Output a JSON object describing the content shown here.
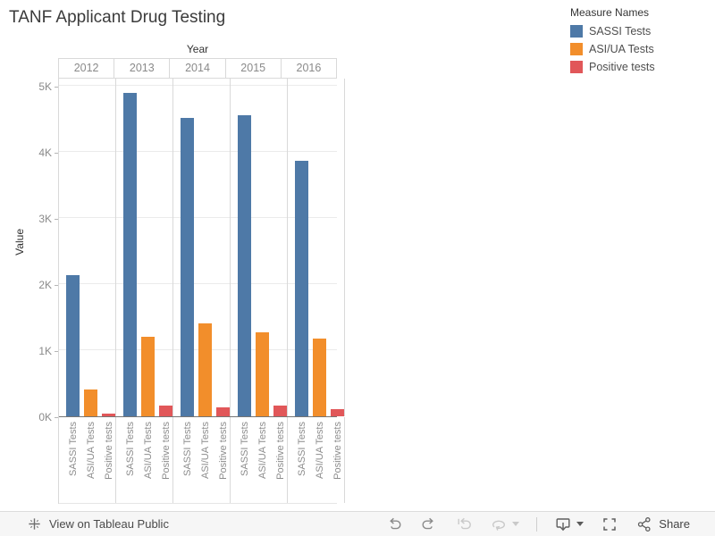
{
  "title": "TANF Applicant Drug Testing",
  "legend": {
    "title": "Measure Names",
    "items": [
      {
        "label": "SASSI Tests",
        "color": "#4e79a7"
      },
      {
        "label": "ASI/UA Tests",
        "color": "#f28e2b"
      },
      {
        "label": "Positive tests",
        "color": "#e15759"
      }
    ]
  },
  "chart_data": {
    "type": "bar",
    "col_axis_title": "Year",
    "ylabel": "Value",
    "categories": [
      "2012",
      "2013",
      "2014",
      "2015",
      "2016"
    ],
    "series": [
      {
        "name": "SASSI Tests",
        "color": "#4e79a7",
        "values": [
          2130,
          4890,
          4510,
          4560,
          3870
        ]
      },
      {
        "name": "ASI/UA Tests",
        "color": "#f28e2b",
        "values": [
          400,
          1200,
          1410,
          1270,
          1180
        ]
      },
      {
        "name": "Positive tests",
        "color": "#e15759",
        "values": [
          40,
          160,
          135,
          160,
          115
        ]
      }
    ],
    "ylim": [
      0,
      5120
    ],
    "yticks": [
      {
        "label": "0K",
        "value": 0
      },
      {
        "label": "1K",
        "value": 1000
      },
      {
        "label": "2K",
        "value": 2000
      },
      {
        "label": "3K",
        "value": 3000
      },
      {
        "label": "4K",
        "value": 4000
      },
      {
        "label": "5K",
        "value": 5000
      }
    ],
    "grid": true,
    "legend_position": "top-right"
  },
  "footer": {
    "view_link": "View on Tableau Public",
    "share_label": "Share",
    "icons": [
      "tableau-logo-icon",
      "undo-icon",
      "redo-icon",
      "revert-icon",
      "refresh-icon",
      "caret-down-icon",
      "download-icon",
      "caret-down-icon",
      "fullscreen-icon",
      "share-icon"
    ]
  }
}
